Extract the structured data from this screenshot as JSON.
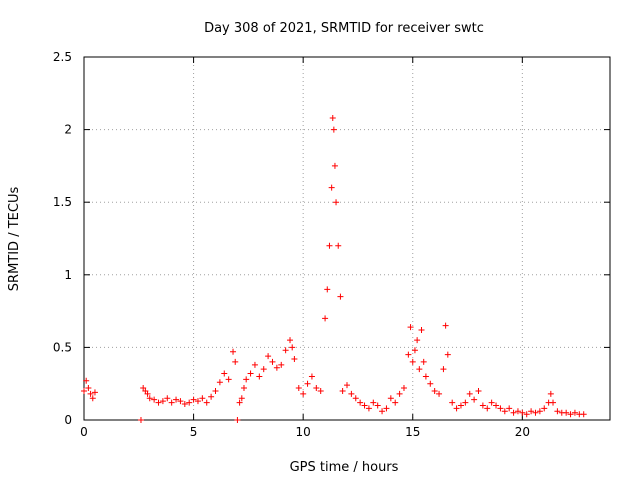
{
  "chart_data": {
    "type": "scatter",
    "title": "Day 308 of 2021, SRMTID for receiver swtc",
    "xlabel": "GPS time / hours",
    "ylabel": "SRMTID / TECUs",
    "xlim": [
      0,
      24
    ],
    "ylim": [
      0,
      2.5
    ],
    "xticks": [
      0,
      5,
      10,
      15,
      20
    ],
    "xtick_labels": [
      "0",
      "5",
      "10",
      "15",
      "20"
    ],
    "yticks": [
      0,
      0.5,
      1,
      1.5,
      2,
      2.5
    ],
    "ytick_labels": [
      "0",
      "0.5",
      "1",
      "1.5",
      "2",
      "2.5"
    ],
    "grid": true,
    "marker": "plus",
    "series": [
      {
        "name": "SRMTID",
        "color": "#ff0000",
        "x": [
          0.0,
          0.1,
          0.2,
          0.3,
          0.4,
          0.5,
          2.6,
          2.7,
          2.8,
          2.9,
          3.0,
          3.2,
          3.4,
          3.6,
          3.8,
          4.0,
          4.2,
          4.4,
          4.6,
          4.8,
          5.0,
          5.2,
          5.4,
          5.6,
          5.8,
          6.0,
          6.2,
          6.4,
          6.6,
          6.8,
          6.9,
          7.0,
          7.1,
          7.2,
          7.3,
          7.4,
          7.6,
          7.8,
          8.0,
          8.2,
          8.4,
          8.6,
          8.8,
          9.0,
          9.2,
          9.4,
          9.5,
          9.6,
          9.8,
          10.0,
          10.2,
          10.4,
          10.6,
          10.8,
          11.0,
          11.1,
          11.2,
          11.3,
          11.35,
          11.4,
          11.45,
          11.5,
          11.6,
          11.7,
          11.8,
          12.0,
          12.2,
          12.4,
          12.6,
          12.8,
          13.0,
          13.2,
          13.4,
          13.6,
          13.8,
          14.0,
          14.2,
          14.4,
          14.6,
          14.8,
          14.9,
          15.0,
          15.1,
          15.2,
          15.3,
          15.4,
          15.5,
          15.6,
          15.8,
          16.0,
          16.2,
          16.4,
          16.5,
          16.6,
          16.8,
          17.0,
          17.2,
          17.4,
          17.6,
          17.8,
          18.0,
          18.2,
          18.4,
          18.6,
          18.8,
          19.0,
          19.2,
          19.4,
          19.6,
          19.8,
          20.0,
          20.2,
          20.4,
          20.6,
          20.8,
          21.0,
          21.2,
          21.3,
          21.4,
          21.6,
          21.8,
          22.0,
          22.2,
          22.4,
          22.6,
          22.8
        ],
        "y": [
          0.2,
          0.27,
          0.22,
          0.18,
          0.15,
          0.19,
          0.0,
          0.22,
          0.2,
          0.18,
          0.15,
          0.14,
          0.12,
          0.13,
          0.15,
          0.12,
          0.14,
          0.13,
          0.11,
          0.12,
          0.14,
          0.13,
          0.15,
          0.12,
          0.16,
          0.2,
          0.26,
          0.32,
          0.28,
          0.47,
          0.4,
          0.0,
          0.12,
          0.15,
          0.22,
          0.28,
          0.32,
          0.38,
          0.3,
          0.35,
          0.44,
          0.4,
          0.36,
          0.38,
          0.48,
          0.55,
          0.5,
          0.42,
          0.22,
          0.18,
          0.25,
          0.3,
          0.22,
          0.2,
          0.7,
          0.9,
          1.2,
          1.6,
          2.08,
          2.0,
          1.75,
          1.5,
          1.2,
          0.85,
          0.2,
          0.24,
          0.18,
          0.15,
          0.12,
          0.1,
          0.08,
          0.12,
          0.1,
          0.06,
          0.08,
          0.15,
          0.12,
          0.18,
          0.22,
          0.45,
          0.64,
          0.4,
          0.48,
          0.55,
          0.35,
          0.62,
          0.4,
          0.3,
          0.25,
          0.2,
          0.18,
          0.35,
          0.65,
          0.45,
          0.12,
          0.08,
          0.1,
          0.12,
          0.18,
          0.14,
          0.2,
          0.1,
          0.08,
          0.12,
          0.1,
          0.08,
          0.06,
          0.08,
          0.05,
          0.06,
          0.05,
          0.04,
          0.06,
          0.05,
          0.06,
          0.08,
          0.12,
          0.18,
          0.12,
          0.06,
          0.05,
          0.05,
          0.04,
          0.05,
          0.04,
          0.04
        ]
      }
    ]
  }
}
